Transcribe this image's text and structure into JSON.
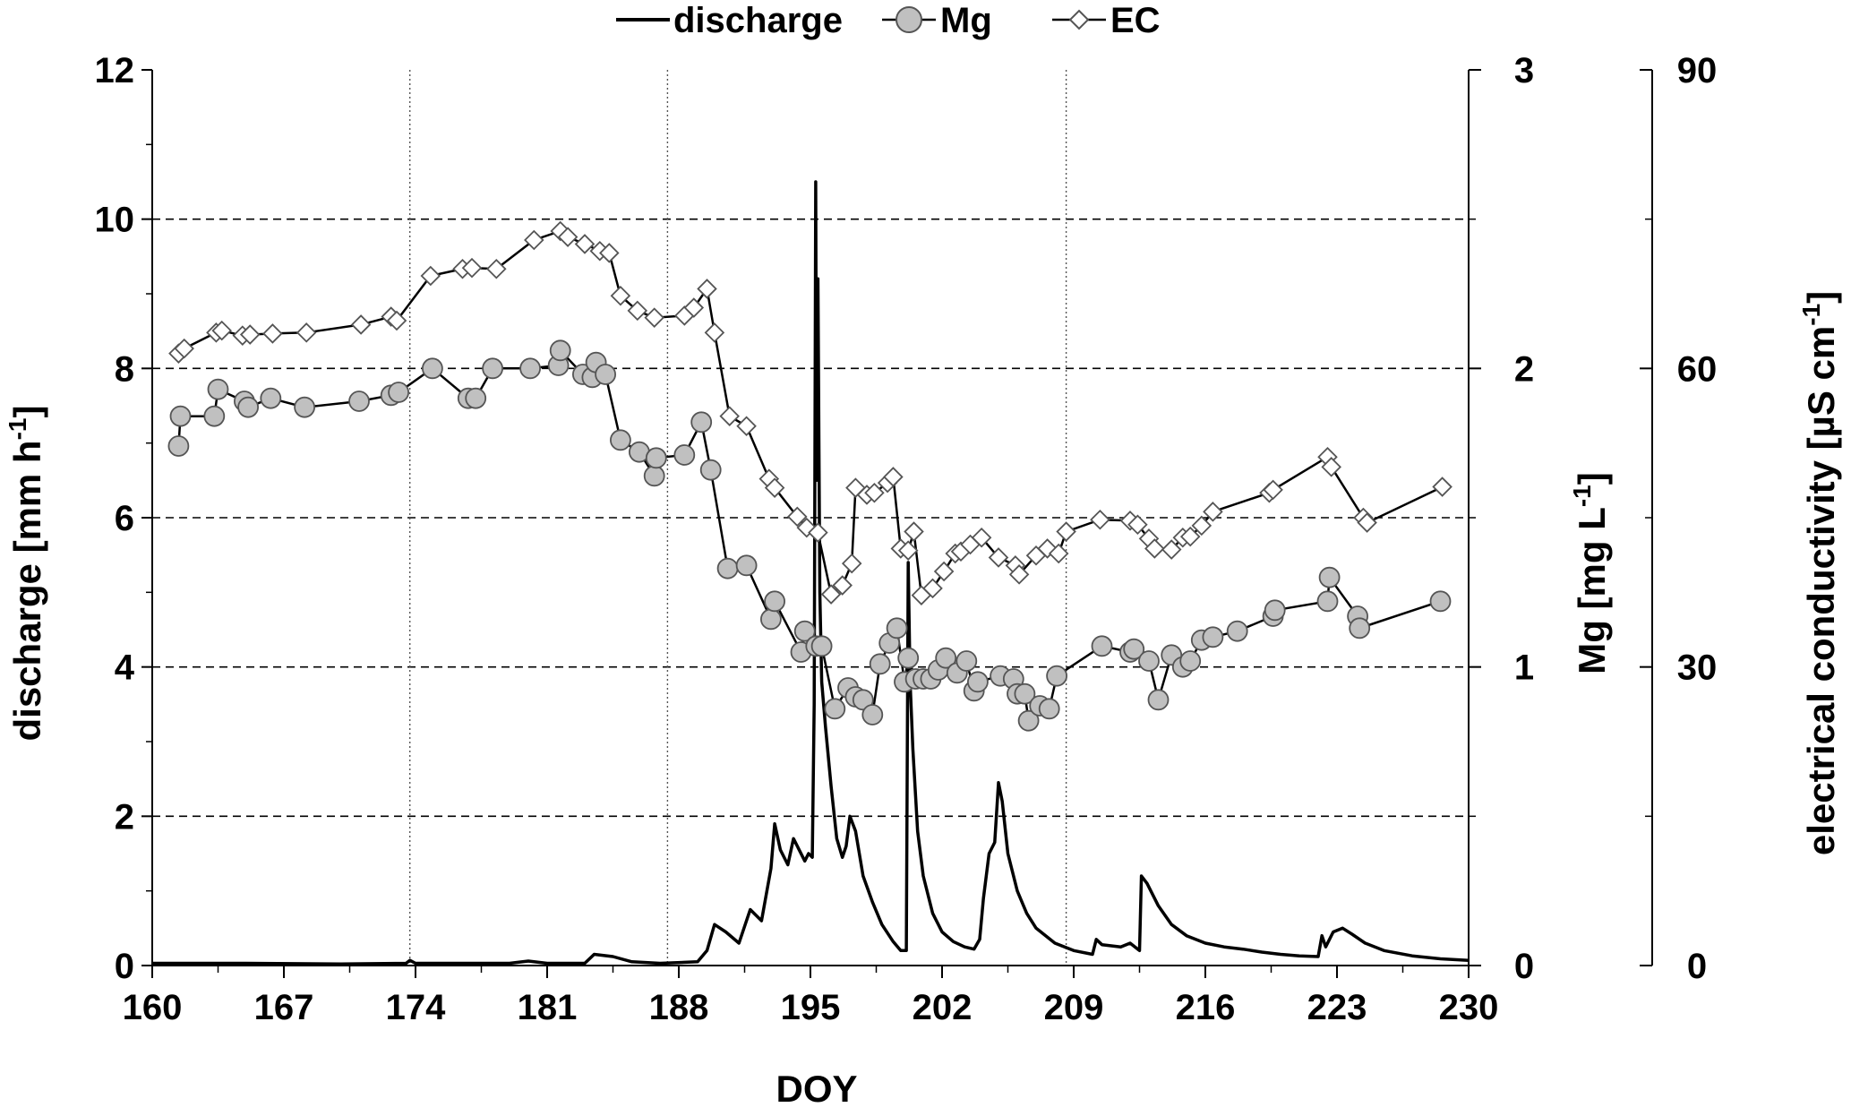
{
  "chart_data": {
    "type": "line",
    "xlabel": "DOY",
    "x_ticks": [
      "160",
      "167",
      "174",
      "181",
      "188",
      "195",
      "202",
      "209",
      "216",
      "223",
      "230"
    ],
    "xlim": [
      160,
      230
    ],
    "left_axis": {
      "label_main": "discharge [mm h",
      "label_sup": "-1",
      "label_end": "]",
      "ticks": [
        "0",
        "2",
        "4",
        "6",
        "8",
        "10",
        "12"
      ],
      "ylim": [
        0,
        12
      ]
    },
    "right_axis_1": {
      "label_main": "Mg [mg L",
      "label_sup": "-1",
      "label_end": "]",
      "ticks": [
        "0",
        "1",
        "2",
        "3"
      ],
      "ylim": [
        0,
        3
      ]
    },
    "right_axis_2": {
      "label_main": "electrical conductivity [µS cm",
      "label_sup": "-1",
      "label_end": "]",
      "ticks": [
        "0",
        "30",
        "60",
        "90"
      ],
      "ylim": [
        0,
        90
      ]
    },
    "grid": {
      "horizontal_dashed_at_discharge": [
        2,
        4,
        6,
        8,
        10
      ],
      "vertical_dotted_at_doy": [
        173.7,
        187.4,
        208.6
      ]
    },
    "legend_position": "top-center",
    "series": [
      {
        "name": "discharge",
        "axis": "left",
        "style": "line",
        "color": "#000000",
        "points": [
          [
            160,
            0.03
          ],
          [
            165,
            0.03
          ],
          [
            170,
            0.02
          ],
          [
            173.5,
            0.03
          ],
          [
            173.7,
            0.07
          ],
          [
            174,
            0.03
          ],
          [
            179,
            0.03
          ],
          [
            180,
            0.06
          ],
          [
            181,
            0.03
          ],
          [
            183,
            0.03
          ],
          [
            183.5,
            0.15
          ],
          [
            184.5,
            0.12
          ],
          [
            185.5,
            0.05
          ],
          [
            187,
            0.03
          ],
          [
            189,
            0.05
          ],
          [
            189.5,
            0.2
          ],
          [
            189.9,
            0.55
          ],
          [
            190.5,
            0.45
          ],
          [
            191.2,
            0.3
          ],
          [
            191.8,
            0.75
          ],
          [
            192.4,
            0.6
          ],
          [
            192.9,
            1.3
          ],
          [
            193.1,
            1.9
          ],
          [
            193.4,
            1.55
          ],
          [
            193.8,
            1.35
          ],
          [
            194.1,
            1.7
          ],
          [
            194.4,
            1.55
          ],
          [
            194.7,
            1.4
          ],
          [
            194.9,
            1.5
          ],
          [
            195.1,
            1.45
          ],
          [
            195.2,
            3.5
          ],
          [
            195.28,
            10.5
          ],
          [
            195.33,
            6.5
          ],
          [
            195.4,
            9.2
          ],
          [
            195.5,
            5.0
          ],
          [
            195.6,
            3.8
          ],
          [
            195.8,
            3.2
          ],
          [
            196.1,
            2.4
          ],
          [
            196.4,
            1.7
          ],
          [
            196.7,
            1.45
          ],
          [
            196.9,
            1.6
          ],
          [
            197.1,
            2.0
          ],
          [
            197.4,
            1.8
          ],
          [
            197.8,
            1.2
          ],
          [
            198.3,
            0.85
          ],
          [
            198.8,
            0.55
          ],
          [
            199.4,
            0.32
          ],
          [
            199.8,
            0.2
          ],
          [
            200.1,
            0.2
          ],
          [
            200.2,
            5.4
          ],
          [
            200.3,
            3.8
          ],
          [
            200.45,
            2.9
          ],
          [
            200.7,
            1.8
          ],
          [
            201.0,
            1.2
          ],
          [
            201.5,
            0.7
          ],
          [
            202,
            0.45
          ],
          [
            202.6,
            0.32
          ],
          [
            203.2,
            0.25
          ],
          [
            203.7,
            0.22
          ],
          [
            204.0,
            0.35
          ],
          [
            204.2,
            0.9
          ],
          [
            204.5,
            1.5
          ],
          [
            204.8,
            1.65
          ],
          [
            205.0,
            2.45
          ],
          [
            205.2,
            2.2
          ],
          [
            205.5,
            1.5
          ],
          [
            205.7,
            1.3
          ],
          [
            206.0,
            1.0
          ],
          [
            206.5,
            0.7
          ],
          [
            207,
            0.5
          ],
          [
            208,
            0.3
          ],
          [
            209,
            0.2
          ],
          [
            210.0,
            0.15
          ],
          [
            210.2,
            0.35
          ],
          [
            210.5,
            0.28
          ],
          [
            211.5,
            0.25
          ],
          [
            212.0,
            0.3
          ],
          [
            212.5,
            0.2
          ],
          [
            212.6,
            1.2
          ],
          [
            212.9,
            1.1
          ],
          [
            213.5,
            0.8
          ],
          [
            214.2,
            0.55
          ],
          [
            215,
            0.4
          ],
          [
            216,
            0.3
          ],
          [
            217,
            0.25
          ],
          [
            218,
            0.22
          ],
          [
            219,
            0.18
          ],
          [
            220,
            0.15
          ],
          [
            221,
            0.13
          ],
          [
            222,
            0.12
          ],
          [
            222.2,
            0.4
          ],
          [
            222.4,
            0.25
          ],
          [
            222.8,
            0.45
          ],
          [
            223.3,
            0.5
          ],
          [
            223.8,
            0.42
          ],
          [
            224.5,
            0.3
          ],
          [
            225.5,
            0.2
          ],
          [
            227,
            0.13
          ],
          [
            228.5,
            0.09
          ],
          [
            230,
            0.07
          ]
        ]
      },
      {
        "name": "Mg",
        "axis": "right_axis_1",
        "style": "line-circles",
        "line_color": "#000000",
        "marker_fill": "#c0c0c0",
        "points": [
          [
            161.4,
            1.74
          ],
          [
            161.5,
            1.84
          ],
          [
            163.3,
            1.84
          ],
          [
            163.5,
            1.93
          ],
          [
            164.9,
            1.89
          ],
          [
            165.1,
            1.87
          ],
          [
            166.3,
            1.9
          ],
          [
            168.1,
            1.87
          ],
          [
            171.0,
            1.89
          ],
          [
            172.7,
            1.91
          ],
          [
            173.1,
            1.92
          ],
          [
            174.9,
            2.0
          ],
          [
            176.8,
            1.9
          ],
          [
            177.2,
            1.9
          ],
          [
            178.1,
            2.0
          ],
          [
            180.1,
            2.0
          ],
          [
            181.6,
            2.01
          ],
          [
            181.7,
            2.06
          ],
          [
            182.9,
            1.98
          ],
          [
            183.4,
            1.97
          ],
          [
            183.6,
            2.02
          ],
          [
            184.1,
            1.98
          ],
          [
            184.9,
            1.76
          ],
          [
            185.9,
            1.72
          ],
          [
            186.7,
            1.64
          ],
          [
            186.8,
            1.7
          ],
          [
            188.3,
            1.71
          ],
          [
            189.2,
            1.82
          ],
          [
            189.7,
            1.66
          ],
          [
            190.6,
            1.33
          ],
          [
            191.6,
            1.34
          ],
          [
            192.9,
            1.16
          ],
          [
            193.1,
            1.22
          ],
          [
            194.5,
            1.05
          ],
          [
            194.7,
            1.12
          ],
          [
            195.3,
            1.07
          ],
          [
            195.6,
            1.07
          ],
          [
            196.3,
            0.86
          ],
          [
            197.0,
            0.93
          ],
          [
            197.4,
            0.9
          ],
          [
            197.8,
            0.89
          ],
          [
            198.3,
            0.84
          ],
          [
            198.7,
            1.01
          ],
          [
            199.2,
            1.08
          ],
          [
            199.6,
            1.13
          ],
          [
            200.0,
            0.95
          ],
          [
            200.2,
            1.03
          ],
          [
            200.6,
            0.96
          ],
          [
            201.0,
            0.96
          ],
          [
            201.4,
            0.96
          ],
          [
            201.8,
            0.99
          ],
          [
            202.2,
            1.03
          ],
          [
            202.8,
            0.98
          ],
          [
            203.3,
            1.02
          ],
          [
            203.7,
            0.92
          ],
          [
            203.9,
            0.95
          ],
          [
            205.1,
            0.97
          ],
          [
            205.8,
            0.96
          ],
          [
            206.0,
            0.91
          ],
          [
            206.4,
            0.91
          ],
          [
            206.6,
            0.82
          ],
          [
            207.2,
            0.87
          ],
          [
            207.7,
            0.86
          ],
          [
            208.1,
            0.97
          ],
          [
            210.5,
            1.07
          ],
          [
            212.0,
            1.05
          ],
          [
            212.2,
            1.06
          ],
          [
            213.0,
            1.02
          ],
          [
            213.5,
            0.89
          ],
          [
            214.2,
            1.04
          ],
          [
            214.8,
            1.0
          ],
          [
            215.2,
            1.02
          ],
          [
            215.8,
            1.09
          ],
          [
            216.4,
            1.1
          ],
          [
            217.7,
            1.12
          ],
          [
            219.6,
            1.17
          ],
          [
            219.7,
            1.19
          ],
          [
            222.5,
            1.22
          ],
          [
            222.6,
            1.3
          ],
          [
            224.1,
            1.17
          ],
          [
            224.2,
            1.13
          ],
          [
            228.5,
            1.22
          ]
        ]
      },
      {
        "name": "EC",
        "axis": "right_axis_2",
        "style": "line-diamonds",
        "line_color": "#000000",
        "marker_fill": "#ffffff",
        "points": [
          [
            161.4,
            61.5
          ],
          [
            161.7,
            62.0
          ],
          [
            163.4,
            63.6
          ],
          [
            163.7,
            63.8
          ],
          [
            164.8,
            63.3
          ],
          [
            165.2,
            63.4
          ],
          [
            166.4,
            63.5
          ],
          [
            168.2,
            63.6
          ],
          [
            171.1,
            64.4
          ],
          [
            172.7,
            65.2
          ],
          [
            173.0,
            64.8
          ],
          [
            174.8,
            69.3
          ],
          [
            176.5,
            70.0
          ],
          [
            177.0,
            70.1
          ],
          [
            178.3,
            70.0
          ],
          [
            180.3,
            72.9
          ],
          [
            181.7,
            73.8
          ],
          [
            182.1,
            73.2
          ],
          [
            183.0,
            72.5
          ],
          [
            183.8,
            71.8
          ],
          [
            184.3,
            71.6
          ],
          [
            184.9,
            67.3
          ],
          [
            185.8,
            65.8
          ],
          [
            186.7,
            65.1
          ],
          [
            188.3,
            65.3
          ],
          [
            188.8,
            66.1
          ],
          [
            189.5,
            68.0
          ],
          [
            189.9,
            63.6
          ],
          [
            190.7,
            55.2
          ],
          [
            191.6,
            54.2
          ],
          [
            192.8,
            48.9
          ],
          [
            193.1,
            48.0
          ],
          [
            194.3,
            45.1
          ],
          [
            194.8,
            44.0
          ],
          [
            195.4,
            43.5
          ],
          [
            196.1,
            37.3
          ],
          [
            196.7,
            38.2
          ],
          [
            197.2,
            40.4
          ],
          [
            197.4,
            48.0
          ],
          [
            198.0,
            47.3
          ],
          [
            198.4,
            47.5
          ],
          [
            199.1,
            48.5
          ],
          [
            199.4,
            49.1
          ],
          [
            199.8,
            41.9
          ],
          [
            200.2,
            41.7
          ],
          [
            200.5,
            43.6
          ],
          [
            200.9,
            37.2
          ],
          [
            201.5,
            37.9
          ],
          [
            202.1,
            39.6
          ],
          [
            202.7,
            41.4
          ],
          [
            203.0,
            41.6
          ],
          [
            203.5,
            42.3
          ],
          [
            204.1,
            43.0
          ],
          [
            205.0,
            41.0
          ],
          [
            205.9,
            40.2
          ],
          [
            206.1,
            39.3
          ],
          [
            207.0,
            41.2
          ],
          [
            207.6,
            41.9
          ],
          [
            208.2,
            41.4
          ],
          [
            208.6,
            43.6
          ],
          [
            210.4,
            44.8
          ],
          [
            212.0,
            44.7
          ],
          [
            212.4,
            44.3
          ],
          [
            213.0,
            42.9
          ],
          [
            213.3,
            41.9
          ],
          [
            214.2,
            41.8
          ],
          [
            214.8,
            43.0
          ],
          [
            215.2,
            43.1
          ],
          [
            215.8,
            44.2
          ],
          [
            216.4,
            45.6
          ],
          [
            219.4,
            47.5
          ],
          [
            219.6,
            47.8
          ],
          [
            222.5,
            51.1
          ],
          [
            222.7,
            50.1
          ],
          [
            224.4,
            45.0
          ],
          [
            224.6,
            44.5
          ],
          [
            228.6,
            48.1
          ]
        ]
      }
    ]
  }
}
